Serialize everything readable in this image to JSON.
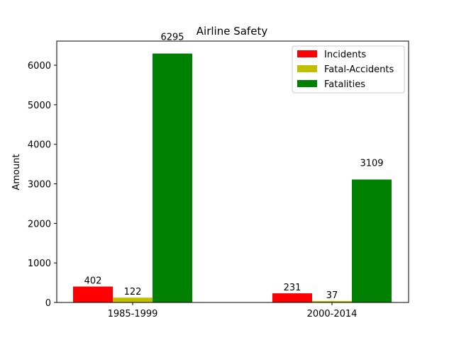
{
  "chart_data": {
    "type": "bar",
    "title": "Airline Safety",
    "xlabel": "",
    "ylabel": "Amount",
    "categories": [
      "1985-1999",
      "2000-2014"
    ],
    "ylim": [
      0,
      6610
    ],
    "yticks": [
      0,
      1000,
      2000,
      3000,
      4000,
      5000,
      6000
    ],
    "grid": false,
    "legend_position": "top-right",
    "series": [
      {
        "name": "Incidents",
        "values": [
          402,
          231
        ],
        "color": "#ff0000"
      },
      {
        "name": "Fatal-Accidents",
        "values": [
          122,
          37
        ],
        "color": "#bfbf00"
      },
      {
        "name": "Fatalities",
        "values": [
          6295,
          3109
        ],
        "color": "#008000"
      }
    ]
  }
}
